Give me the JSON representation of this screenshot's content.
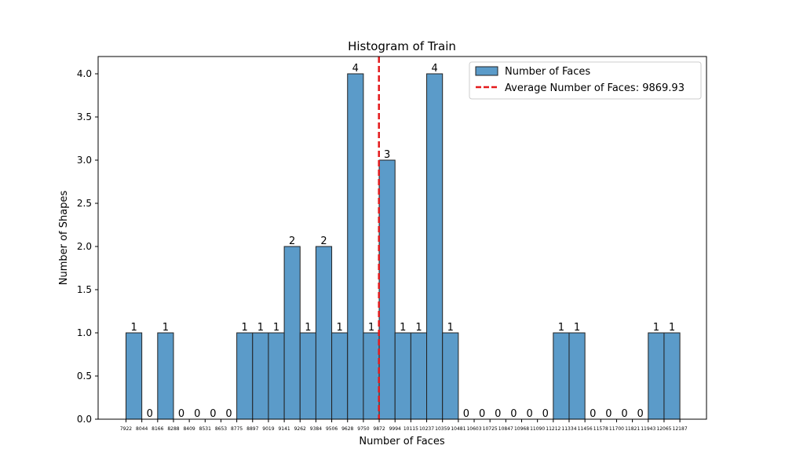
{
  "chart_data": {
    "type": "bar",
    "title": "Histogram of Train",
    "xlabel": "Number of Faces",
    "ylabel": "Number of Shapes",
    "ylim": [
      0,
      4.2
    ],
    "yticks": [
      "0.0",
      "0.5",
      "1.0",
      "1.5",
      "2.0",
      "2.5",
      "3.0",
      "3.5",
      "4.0"
    ],
    "bin_edges": [
      "7922",
      "8044",
      "8166",
      "8288",
      "8409",
      "8531",
      "8653",
      "8775",
      "8897",
      "9019",
      "9141",
      "9262",
      "9384",
      "9506",
      "9628",
      "9750",
      "9872",
      "9994",
      "10115",
      "10237",
      "10359",
      "10481",
      "10603",
      "10725",
      "10847",
      "10968",
      "11090",
      "11212",
      "11334",
      "11456",
      "11578",
      "11700",
      "11821",
      "11943",
      "12065",
      "12187"
    ],
    "bin_edge_values": [
      7922,
      8044,
      8166,
      8288,
      8409,
      8531,
      8653,
      8775,
      8897,
      9019,
      9141,
      9262,
      9384,
      9506,
      9628,
      9750,
      9872,
      9994,
      10115,
      10237,
      10359,
      10481,
      10603,
      10725,
      10847,
      10968,
      11090,
      11212,
      11334,
      11456,
      11578,
      11700,
      11821,
      11943,
      12065,
      12187
    ],
    "series": [
      {
        "name": "Number of Faces",
        "color": "#5b9bc9",
        "values": [
          1,
          0,
          1,
          0,
          0,
          0,
          0,
          1,
          1,
          1,
          2,
          1,
          2,
          1,
          4,
          1,
          3,
          1,
          1,
          4,
          1,
          0,
          0,
          0,
          0,
          0,
          0,
          1,
          1,
          0,
          0,
          0,
          0,
          1,
          1
        ]
      }
    ],
    "mean_line": {
      "label": "Average Number of Faces: 9869.93",
      "value": 9869.93,
      "color": "#e41a1c"
    },
    "legend_position": "top-right",
    "grid": false
  }
}
